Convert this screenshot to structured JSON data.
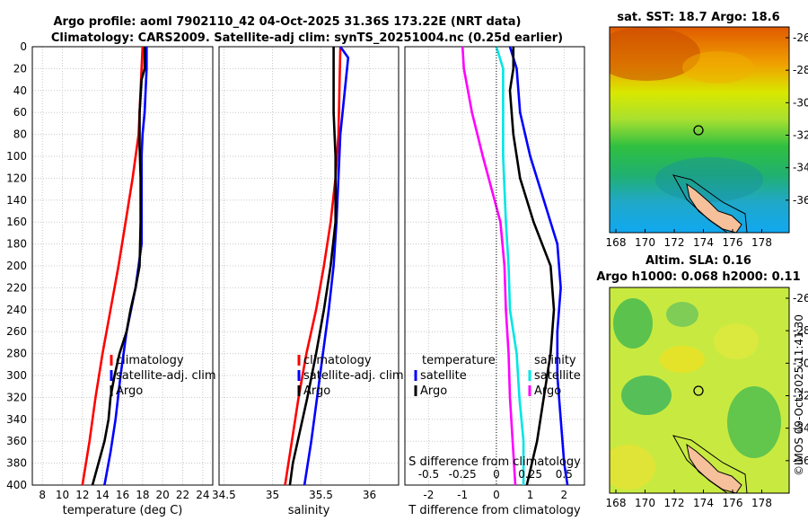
{
  "header": {
    "title_line1": "Argo profile: aoml 7902110_42 04-Oct-2025 31.36S 173.22E (NRT data)",
    "title_line2": "Climatology: CARS2009. Satellite-adj clim: synTS_20251004.nc (0.25d earlier)"
  },
  "colors": {
    "climatology": "#ff0000",
    "satellite": "#0000ff",
    "argo": "#000000",
    "salinity_diff": "#00e5e5",
    "satellite_s_diff": "#ff00ff"
  },
  "chart_data": [
    {
      "type": "line",
      "name": "temperature",
      "xlabel": "temperature (deg C)",
      "ylabel": "",
      "xlim": [
        7,
        25
      ],
      "ylim": [
        400,
        0
      ],
      "xticks": [
        "8",
        "10",
        "12",
        "14",
        "16",
        "18",
        "20",
        "22",
        "24"
      ],
      "yticks": [
        "0",
        "20",
        "40",
        "60",
        "80",
        "100",
        "120",
        "140",
        "160",
        "180",
        "200",
        "220",
        "240",
        "260",
        "280",
        "300",
        "320",
        "340",
        "360",
        "380",
        "400"
      ],
      "grid": true,
      "legend": [
        "climatology",
        "satellite-adj. clim",
        "Argo"
      ],
      "series": [
        {
          "name": "climatology",
          "depth": [
            0,
            40,
            80,
            120,
            160,
            200,
            240,
            280,
            320,
            360,
            400
          ],
          "values": [
            18.0,
            17.8,
            17.6,
            17.0,
            16.3,
            15.6,
            14.8,
            14.0,
            13.3,
            12.7,
            12.0
          ]
        },
        {
          "name": "satellite-adj. clim",
          "depth": [
            0,
            20,
            40,
            60,
            80,
            100,
            140,
            180,
            220,
            260,
            300,
            340,
            370,
            400
          ],
          "values": [
            18.4,
            18.4,
            18.3,
            18.2,
            18.0,
            17.9,
            17.9,
            17.9,
            17.3,
            16.4,
            15.8,
            15.3,
            14.8,
            14.2
          ]
        },
        {
          "name": "Argo",
          "depth": [
            0,
            20,
            30,
            60,
            90,
            120,
            160,
            200,
            220,
            240,
            260,
            280,
            300,
            320,
            340,
            360,
            380,
            400
          ],
          "values": [
            18.2,
            18.2,
            17.9,
            17.7,
            17.7,
            17.8,
            17.8,
            17.7,
            17.3,
            16.8,
            16.4,
            15.7,
            15.2,
            14.8,
            14.6,
            14.2,
            13.6,
            13.0
          ]
        }
      ]
    },
    {
      "type": "line",
      "name": "salinity",
      "xlabel": "salinity",
      "ylabel": "",
      "xlim": [
        34.45,
        36.3
      ],
      "ylim": [
        400,
        0
      ],
      "xticks": [
        "34.5",
        "35",
        "35.5",
        "36"
      ],
      "grid": true,
      "legend": [
        "climatology",
        "satellite-adj. clim",
        "Argo"
      ],
      "series": [
        {
          "name": "climatology",
          "depth": [
            0,
            80,
            120,
            160,
            200,
            240,
            280,
            320,
            360,
            400
          ],
          "values": [
            35.7,
            35.68,
            35.65,
            35.6,
            35.53,
            35.45,
            35.35,
            35.27,
            35.2,
            35.13
          ]
        },
        {
          "name": "satellite-adj. clim",
          "depth": [
            0,
            10,
            80,
            160,
            200,
            240,
            280,
            320,
            360,
            400
          ],
          "values": [
            35.7,
            35.78,
            35.7,
            35.66,
            35.63,
            35.58,
            35.52,
            35.46,
            35.4,
            35.33
          ]
        },
        {
          "name": "Argo",
          "depth": [
            0,
            20,
            60,
            100,
            160,
            200,
            240,
            280,
            320,
            360,
            380,
            400
          ],
          "values": [
            35.63,
            35.63,
            35.63,
            35.65,
            35.65,
            35.6,
            35.53,
            35.45,
            35.36,
            35.26,
            35.21,
            35.18
          ]
        }
      ]
    },
    {
      "type": "line",
      "name": "difference",
      "xlabel": "T difference from climatology",
      "xlabel_top": "S difference from climatology",
      "xlim": [
        -2.7,
        2.6
      ],
      "ylim": [
        400,
        0
      ],
      "xticks": [
        "-2",
        "-1",
        "0",
        "1",
        "2"
      ],
      "xticks_s": [
        "-0.5",
        "-0.25",
        "0",
        "0.25",
        "0.5"
      ],
      "grid": true,
      "legend_t": {
        "title": "temperature",
        "items": [
          "satellite",
          "Argo"
        ]
      },
      "legend_s": {
        "title": "salinity",
        "items": [
          "satellite",
          "Argo"
        ]
      },
      "series": [
        {
          "name": "T satellite",
          "depth": [
            0,
            20,
            60,
            100,
            140,
            180,
            220,
            260,
            300,
            340,
            380,
            400
          ],
          "values": [
            0.4,
            0.6,
            0.7,
            1.0,
            1.4,
            1.8,
            1.9,
            1.8,
            1.8,
            1.9,
            2.0,
            2.1
          ]
        },
        {
          "name": "T Argo",
          "depth": [
            0,
            20,
            40,
            80,
            120,
            160,
            200,
            240,
            280,
            320,
            360,
            400
          ],
          "values": [
            0.5,
            0.5,
            0.4,
            0.5,
            0.7,
            1.1,
            1.6,
            1.7,
            1.6,
            1.4,
            1.2,
            0.9
          ]
        },
        {
          "name": "S satellite",
          "depth": [
            0,
            20,
            60,
            100,
            160,
            200,
            240,
            280,
            320,
            360,
            400
          ],
          "values": [
            0.0,
            0.05,
            0.05,
            0.05,
            0.07,
            0.09,
            0.1,
            0.15,
            0.17,
            0.2,
            0.2
          ]
        },
        {
          "name": "S Argo",
          "depth": [
            0,
            20,
            60,
            100,
            160,
            200,
            240,
            280,
            320,
            360,
            400
          ],
          "values": [
            -0.25,
            -0.24,
            -0.18,
            -0.1,
            0.03,
            0.06,
            0.07,
            0.09,
            0.1,
            0.12,
            0.14
          ]
        }
      ]
    }
  ],
  "maps": {
    "sst_title": "sat. SST: 18.7 Argo: 18.6",
    "sla_title_1": "Altim. SLA: 0.16",
    "sla_title_2": "Argo h1000: 0.068 h2000: 0.11",
    "lat_ticks": [
      "-26",
      "-28",
      "-30",
      "-32",
      "-34",
      "-36"
    ],
    "lon_ticks": [
      "168",
      "170",
      "172",
      "174",
      "176",
      "178"
    ]
  },
  "footer": {
    "credit": "©IMOS 09-Oct-2025 11:41:30"
  }
}
